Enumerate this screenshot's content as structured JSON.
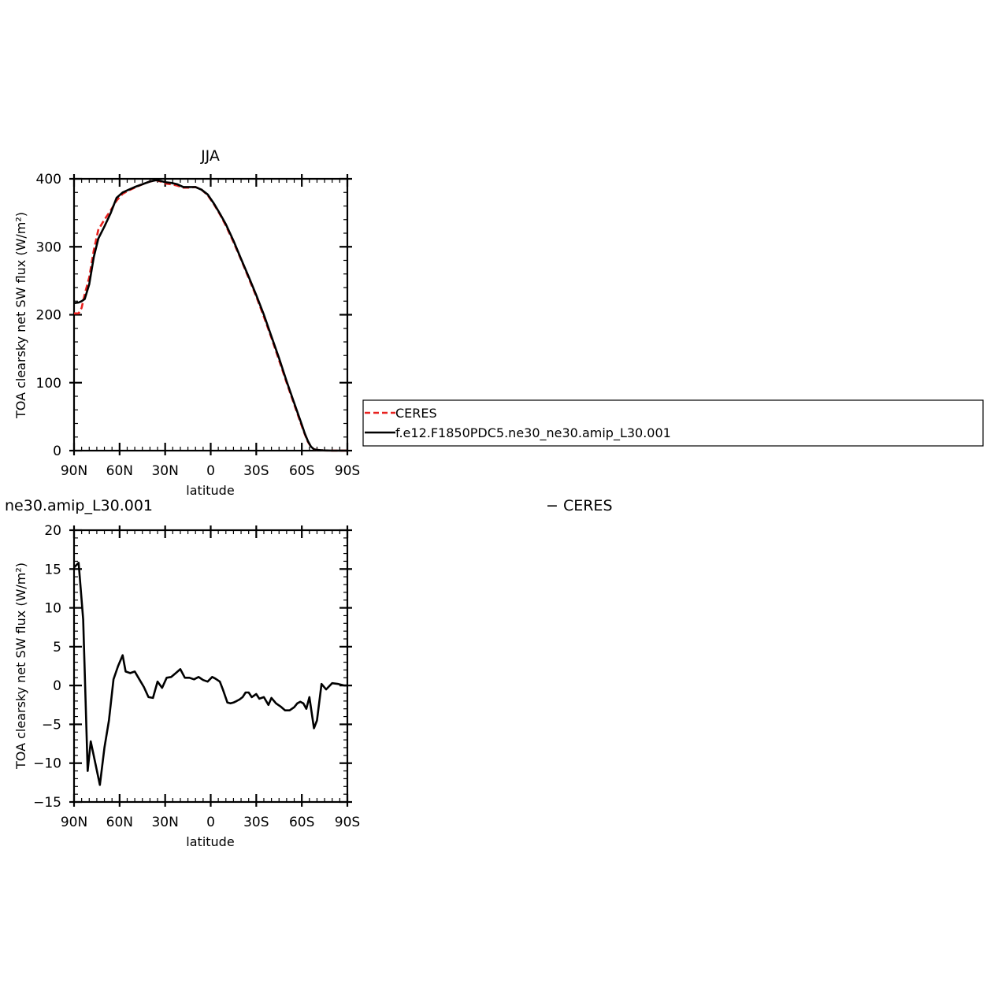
{
  "chart_data": [
    {
      "type": "line",
      "title": "JJA",
      "xlabel": "latitude",
      "ylabel": "TOA clearsky net SW flux (W/m²)",
      "xlim": [
        90,
        -90
      ],
      "ylim": [
        0,
        400
      ],
      "xticks": [
        90,
        60,
        30,
        0,
        -30,
        -60,
        -90
      ],
      "xtick_labels": [
        "90N",
        "60N",
        "30N",
        "0",
        "30S",
        "60S",
        "90S"
      ],
      "yticks": [
        0,
        100,
        200,
        300,
        400
      ],
      "ytick_labels": [
        "0",
        "100",
        "200",
        "300",
        "400"
      ],
      "legend_position": "right-outside",
      "series": [
        {
          "name": "CERES",
          "color": "#e8221f",
          "dash": "dashed",
          "x": [
            90,
            87,
            85,
            83,
            80,
            77,
            74,
            70,
            66,
            62,
            58,
            54,
            50,
            45,
            40,
            36,
            33,
            30,
            26,
            22,
            18,
            14,
            10,
            6,
            2,
            -2,
            -6,
            -10,
            -15,
            -20,
            -25,
            -30,
            -35,
            -40,
            -45,
            -50,
            -55,
            -60,
            -62,
            -64,
            -66,
            -68,
            -70,
            -74,
            -80,
            -86,
            -90
          ],
          "values": [
            202,
            202,
            210,
            230,
            255,
            295,
            325,
            340,
            353,
            368,
            378,
            383,
            387,
            392,
            396,
            398,
            396,
            393,
            392,
            390,
            387,
            387,
            388,
            384,
            376,
            363,
            348,
            331,
            307,
            281,
            254,
            227,
            197,
            166,
            133,
            100,
            68,
            36,
            24,
            13,
            6,
            2,
            1,
            0.3,
            0,
            0,
            0
          ]
        },
        {
          "name": "f.e12.F1850PDC5.ne30_ne30.amip_L30.001",
          "color": "#000000",
          "dash": "solid",
          "x": [
            90,
            87,
            85,
            83,
            80,
            77,
            74,
            70,
            66,
            62,
            58,
            54,
            50,
            45,
            40,
            36,
            33,
            30,
            26,
            22,
            18,
            14,
            10,
            6,
            2,
            -2,
            -6,
            -10,
            -15,
            -20,
            -25,
            -30,
            -35,
            -40,
            -45,
            -50,
            -55,
            -60,
            -62,
            -64,
            -66,
            -68,
            -70,
            -74,
            -80,
            -86,
            -90
          ],
          "values": [
            217,
            218,
            220,
            223,
            245,
            285,
            312,
            330,
            349,
            372,
            380,
            384,
            388,
            392,
            396,
            398,
            397,
            395,
            394,
            392,
            388,
            388,
            388,
            384,
            377,
            364,
            349,
            333,
            309,
            282,
            256,
            229,
            200,
            168,
            136,
            102,
            70,
            38,
            25,
            14,
            6,
            2,
            1,
            0.3,
            0,
            0,
            0
          ]
        }
      ]
    },
    {
      "type": "line",
      "title": "ne30.amip_L30.001",
      "title_right": "− CERES",
      "xlabel": "latitude",
      "ylabel": "TOA clearsky net SW flux (W/m²)",
      "xlim": [
        90,
        -90
      ],
      "ylim": [
        -15,
        20
      ],
      "xticks": [
        90,
        60,
        30,
        0,
        -30,
        -60,
        -90
      ],
      "xtick_labels": [
        "90N",
        "60N",
        "30N",
        "0",
        "30S",
        "60S",
        "90S"
      ],
      "yticks": [
        -15,
        -10,
        -5,
        0,
        5,
        10,
        15,
        20
      ],
      "ytick_labels": [
        "−15",
        "−10",
        "−5",
        "0",
        "5",
        "10",
        "15",
        "20"
      ],
      "series": [
        {
          "color": "#000000",
          "dash": "solid",
          "x": [
            90,
            87,
            84,
            81,
            79,
            76,
            73,
            70,
            67,
            64,
            61,
            58,
            56,
            53,
            50,
            47,
            44,
            41,
            38,
            35,
            32,
            29,
            26,
            23,
            20,
            17,
            14,
            11,
            8,
            5,
            2,
            -1,
            -3,
            -6,
            -8,
            -11,
            -13,
            -15,
            -17,
            -19,
            -21,
            -23,
            -25,
            -27,
            -30,
            -32,
            -35,
            -38,
            -40,
            -43,
            -46,
            -49,
            -52,
            -55,
            -57,
            -59,
            -61,
            -63,
            -65,
            -68,
            -70,
            -73,
            -76,
            -80,
            -84,
            -88,
            -90
          ],
          "values": [
            15.2,
            15.8,
            8.5,
            -11.0,
            -7.2,
            -10.0,
            -12.8,
            -8.0,
            -4.5,
            0.8,
            2.5,
            3.9,
            1.8,
            1.6,
            1.8,
            0.8,
            -0.2,
            -1.5,
            -1.6,
            0.5,
            -0.3,
            1.0,
            1.1,
            1.6,
            2.1,
            1.0,
            1.0,
            0.8,
            1.1,
            0.7,
            0.5,
            1.1,
            0.9,
            0.5,
            -0.5,
            -2.2,
            -2.3,
            -2.2,
            -2.0,
            -1.8,
            -1.5,
            -0.9,
            -0.9,
            -1.5,
            -1.1,
            -1.7,
            -1.5,
            -2.5,
            -1.6,
            -2.3,
            -2.7,
            -3.2,
            -3.2,
            -2.8,
            -2.3,
            -2.1,
            -2.3,
            -3.0,
            -1.5,
            -5.5,
            -4.5,
            0.2,
            -0.5,
            0.3,
            0.2,
            0.0,
            0.0
          ]
        }
      ]
    }
  ],
  "legend": {
    "items": [
      "CERES",
      "f.e12.F1850PDC5.ne30_ne30.amip_L30.001"
    ]
  },
  "texts": {
    "title1": "JJA",
    "title2_left": "ne30.amip_L30.001",
    "title2_right": "− CERES",
    "ylabel": "TOA clearsky net SW flux (W/m²)",
    "xlabel": "latitude"
  }
}
